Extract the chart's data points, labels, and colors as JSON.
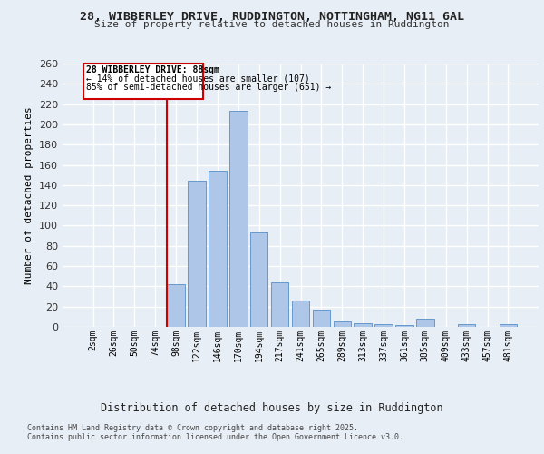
{
  "title1": "28, WIBBERLEY DRIVE, RUDDINGTON, NOTTINGHAM, NG11 6AL",
  "title2": "Size of property relative to detached houses in Ruddington",
  "xlabel": "Distribution of detached houses by size in Ruddington",
  "ylabel": "Number of detached properties",
  "bar_labels": [
    "2sqm",
    "26sqm",
    "50sqm",
    "74sqm",
    "98sqm",
    "122sqm",
    "146sqm",
    "170sqm",
    "194sqm",
    "217sqm",
    "241sqm",
    "265sqm",
    "289sqm",
    "313sqm",
    "337sqm",
    "361sqm",
    "385sqm",
    "409sqm",
    "433sqm",
    "457sqm",
    "481sqm"
  ],
  "bar_values": [
    0,
    0,
    0,
    0,
    42,
    144,
    154,
    213,
    93,
    44,
    26,
    17,
    5,
    4,
    3,
    2,
    8,
    0,
    3,
    0,
    3
  ],
  "bar_color": "#aec6e8",
  "bar_edge_color": "#6699cc",
  "background_color": "#e8eef5",
  "grid_color": "#ffffff",
  "annotation_title": "28 WIBBERLEY DRIVE: 88sqm",
  "annotation_line1": "← 14% of detached houses are smaller (107)",
  "annotation_line2": "85% of semi-detached houses are larger (651) →",
  "annotation_box_color": "#ffffff",
  "annotation_box_edge": "#cc0000",
  "red_line_color": "#cc0000",
  "ylim": [
    0,
    260
  ],
  "yticks": [
    0,
    20,
    40,
    60,
    80,
    100,
    120,
    140,
    160,
    180,
    200,
    220,
    240,
    260
  ],
  "footnote1": "Contains HM Land Registry data © Crown copyright and database right 2025.",
  "footnote2": "Contains public sector information licensed under the Open Government Licence v3.0."
}
